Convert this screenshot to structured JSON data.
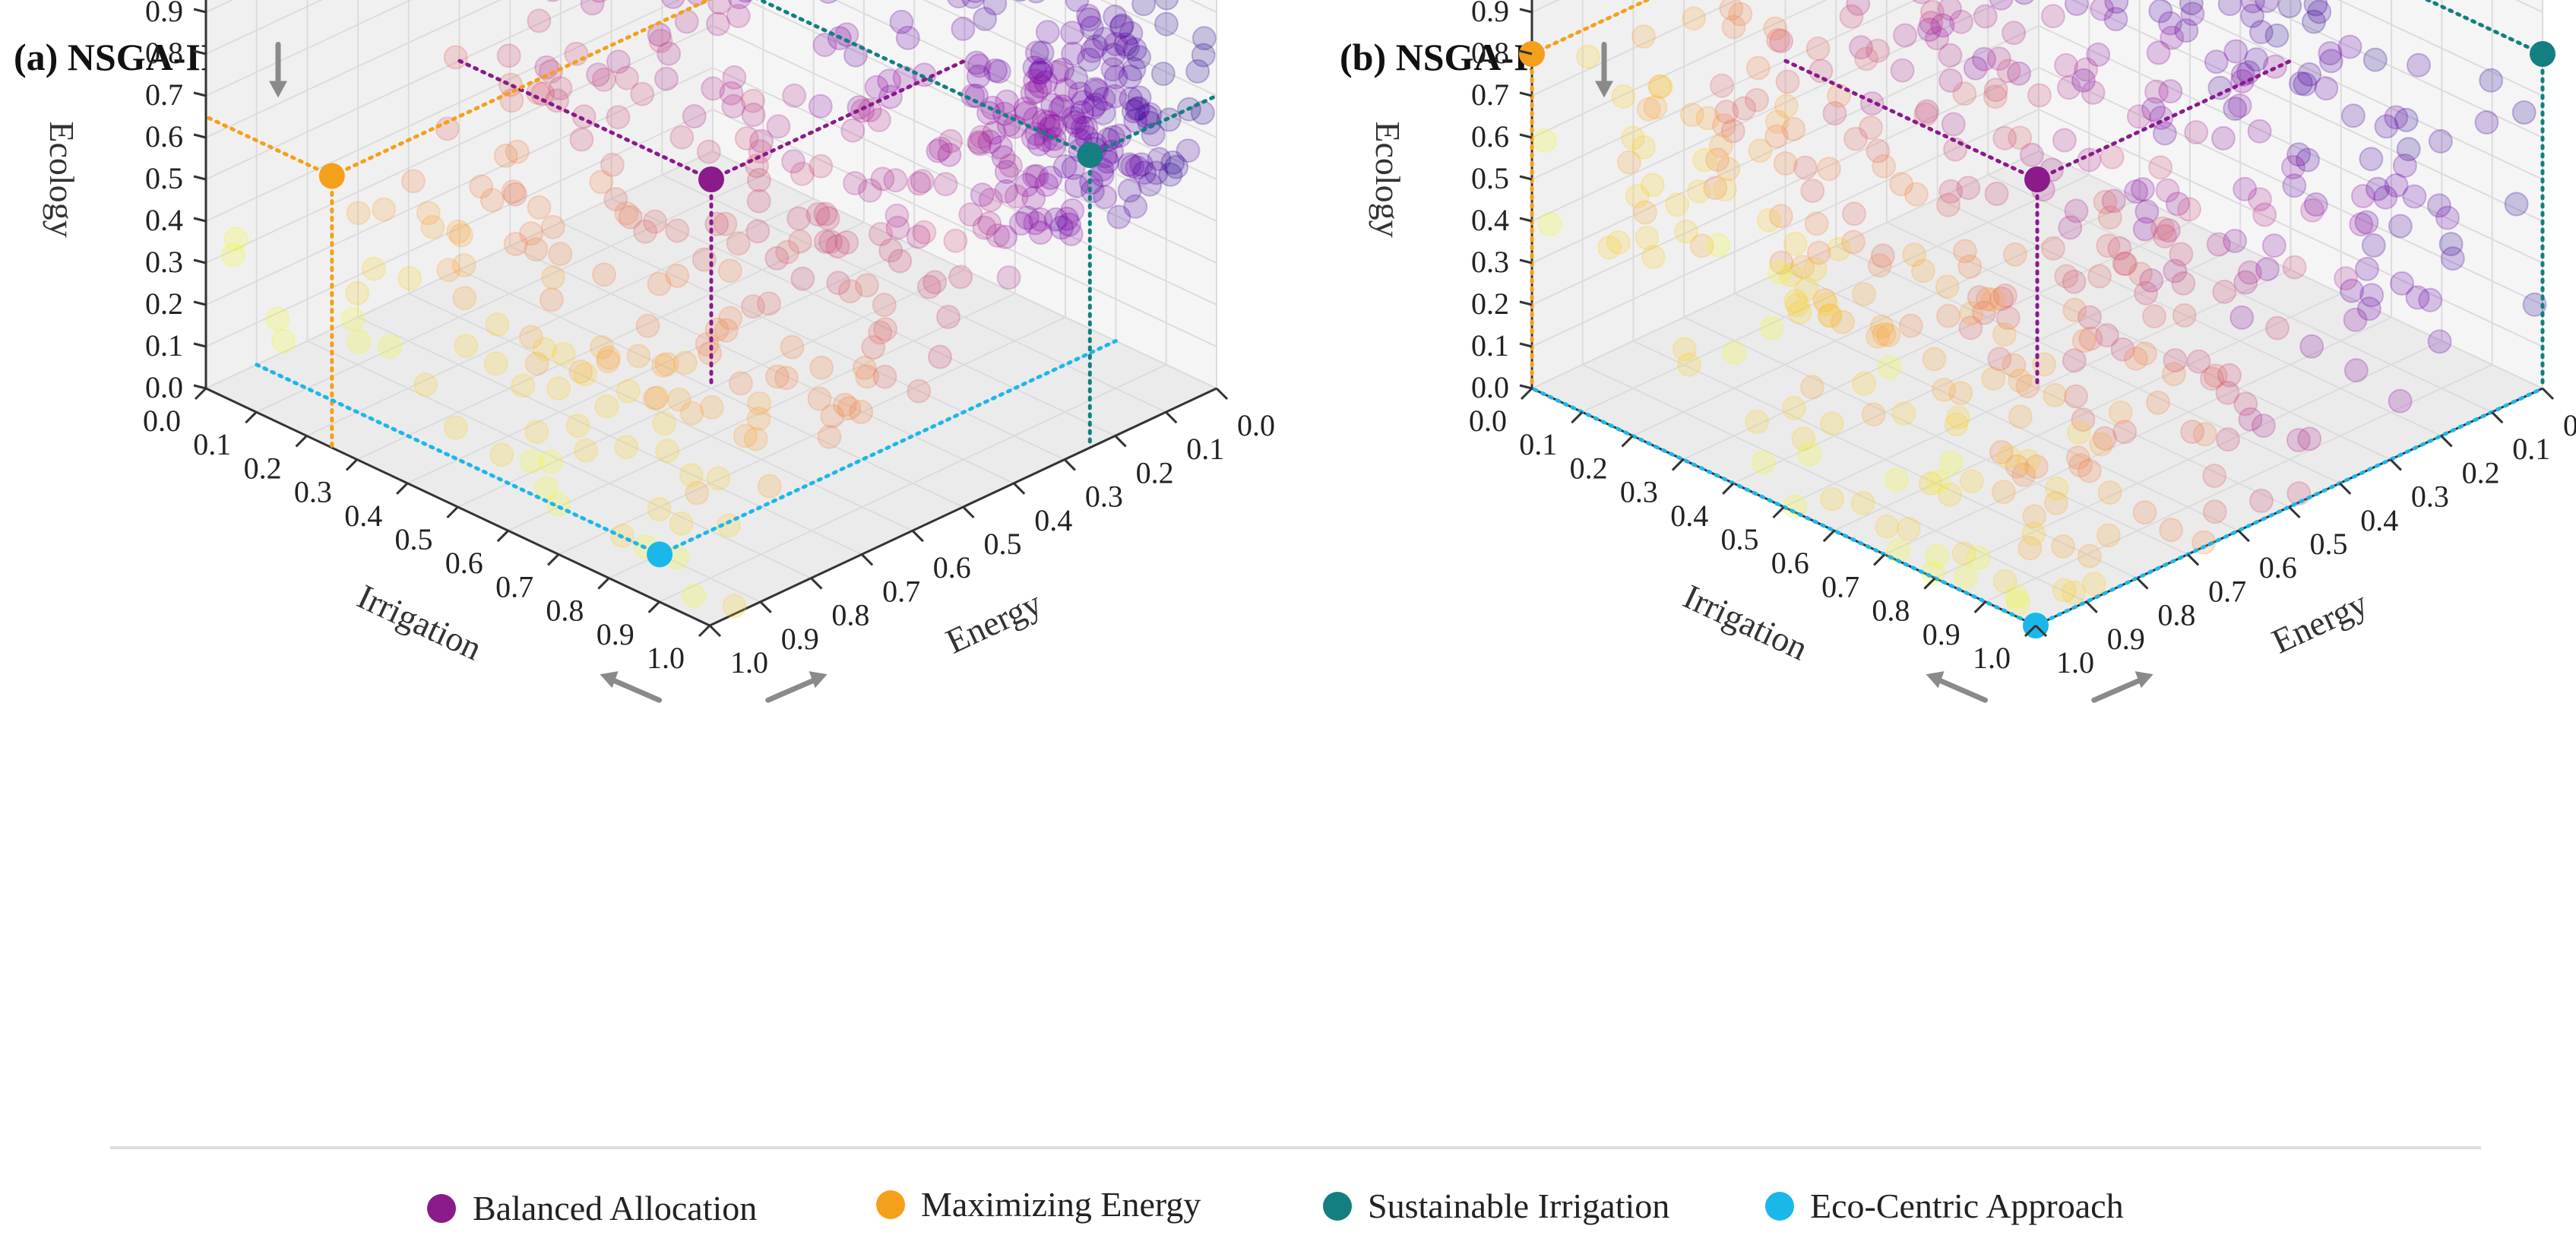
{
  "panels": [
    {
      "id": "a",
      "title": "(a) NSGA-II"
    },
    {
      "id": "b",
      "title": "(b) NSGA-III"
    }
  ],
  "axes": {
    "x_label": "Irrigation",
    "y_label": "Energy",
    "z_label": "Ecology",
    "ticks": [
      "0.0",
      "0.1",
      "0.2",
      "0.3",
      "0.4",
      "0.5",
      "0.6",
      "0.7",
      "0.8",
      "0.9",
      "1.0"
    ]
  },
  "legend": [
    {
      "label": "Balanced Allocation",
      "color": "#8b1a8b"
    },
    {
      "label": "Maximizing Energy",
      "color": "#f5a01a"
    },
    {
      "label": "Sustainable Irrigation",
      "color": "#137f80"
    },
    {
      "label": "Eco-Centric Approach",
      "color": "#1ab8ea"
    }
  ],
  "chart_data": [
    {
      "type": "scatter3d",
      "title": "(a) NSGA-II",
      "xlabel": "Irrigation",
      "ylabel": "Energy",
      "zlabel": "Ecology",
      "xlim": [
        0,
        1
      ],
      "ylim": [
        0,
        1
      ],
      "zlim": [
        0,
        1
      ],
      "colormap": "plasma (purple → yellow by increasing Energy)",
      "highlights": [
        {
          "name": "Balanced Allocation",
          "x": 0.5,
          "y": 0.5,
          "z": 0.5
        },
        {
          "name": "Maximizing Energy",
          "x": 0.25,
          "y": 1.0,
          "z": 0.65
        },
        {
          "name": "Sustainable Irrigation",
          "x": 1.0,
          "y": 0.25,
          "z": 0.7
        },
        {
          "name": "Eco-Centric Approach",
          "x": 0.8,
          "y": 0.9,
          "z": 0.0
        }
      ]
    },
    {
      "type": "scatter3d",
      "title": "(b) NSGA-III",
      "xlabel": "Irrigation",
      "ylabel": "Energy",
      "zlabel": "Ecology",
      "xlim": [
        0,
        1
      ],
      "ylim": [
        0,
        1
      ],
      "zlim": [
        0,
        1
      ],
      "colormap": "plasma (purple → yellow by increasing Energy)",
      "highlights": [
        {
          "name": "Balanced Allocation",
          "x": 0.5,
          "y": 0.5,
          "z": 0.5
        },
        {
          "name": "Maximizing Energy",
          "x": 0.0,
          "y": 1.0,
          "z": 0.8
        },
        {
          "name": "Sustainable Irrigation",
          "x": 1.0,
          "y": 0.0,
          "z": 0.8
        },
        {
          "name": "Eco-Centric Approach",
          "x": 1.0,
          "y": 1.0,
          "z": 0.0
        }
      ]
    }
  ]
}
